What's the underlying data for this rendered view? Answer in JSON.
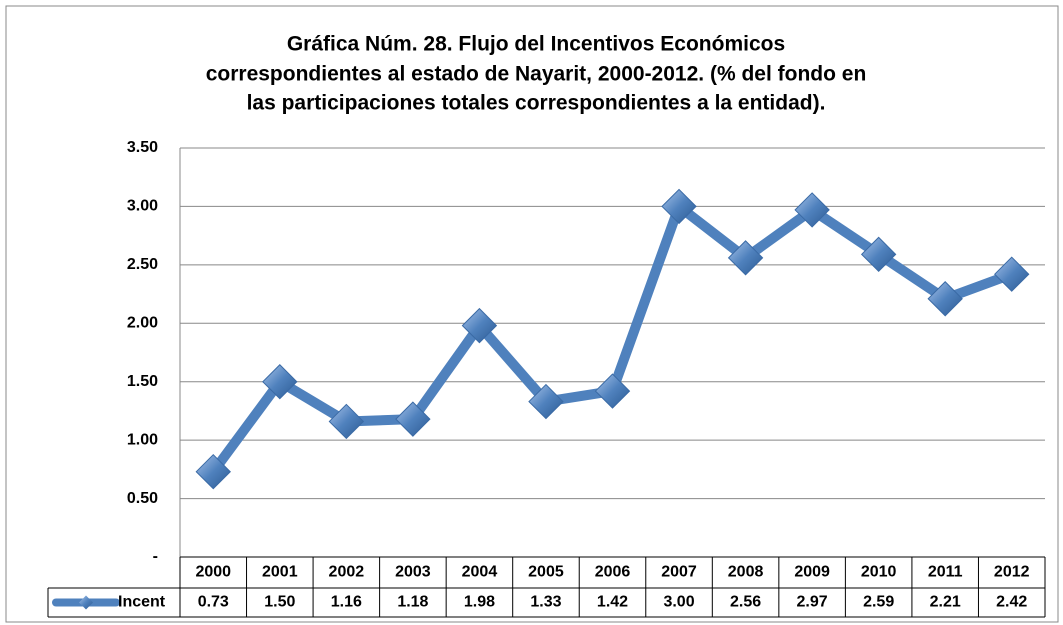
{
  "chart_data": {
    "type": "line",
    "title": [
      "Gráfica Núm. 28. Flujo del Incentivos Económicos",
      "correspondientes al estado de Nayarit, 2000-2012. (% del fondo en",
      "las participaciones totales correspondientes a la entidad)."
    ],
    "categories": [
      "2000",
      "2001",
      "2002",
      "2003",
      "2004",
      "2005",
      "2006",
      "2007",
      "2008",
      "2009",
      "2010",
      "2011",
      "2012"
    ],
    "series": [
      {
        "name": "Incent",
        "color": "#4f81bd",
        "values": [
          0.73,
          1.5,
          1.16,
          1.18,
          1.98,
          1.33,
          1.42,
          3.0,
          2.56,
          2.97,
          2.59,
          2.21,
          2.42
        ],
        "value_labels": [
          "0.73",
          "1.50",
          "1.16",
          "1.18",
          "1.98",
          "1.33",
          "1.42",
          "3.00",
          "2.56",
          "2.97",
          "2.59",
          "2.21",
          "2.42"
        ]
      }
    ],
    "ylim": [
      0,
      3.5
    ],
    "yticks": [
      {
        "value": 0,
        "label": "-"
      },
      {
        "value": 0.5,
        "label": "0.50"
      },
      {
        "value": 1,
        "label": "1.00"
      },
      {
        "value": 1.5,
        "label": "1.50"
      },
      {
        "value": 2,
        "label": "2.00"
      },
      {
        "value": 2.5,
        "label": "2.50"
      },
      {
        "value": 3,
        "label": "3.00"
      },
      {
        "value": 3.5,
        "label": "3.50"
      }
    ],
    "grid": true,
    "data_table": true
  }
}
